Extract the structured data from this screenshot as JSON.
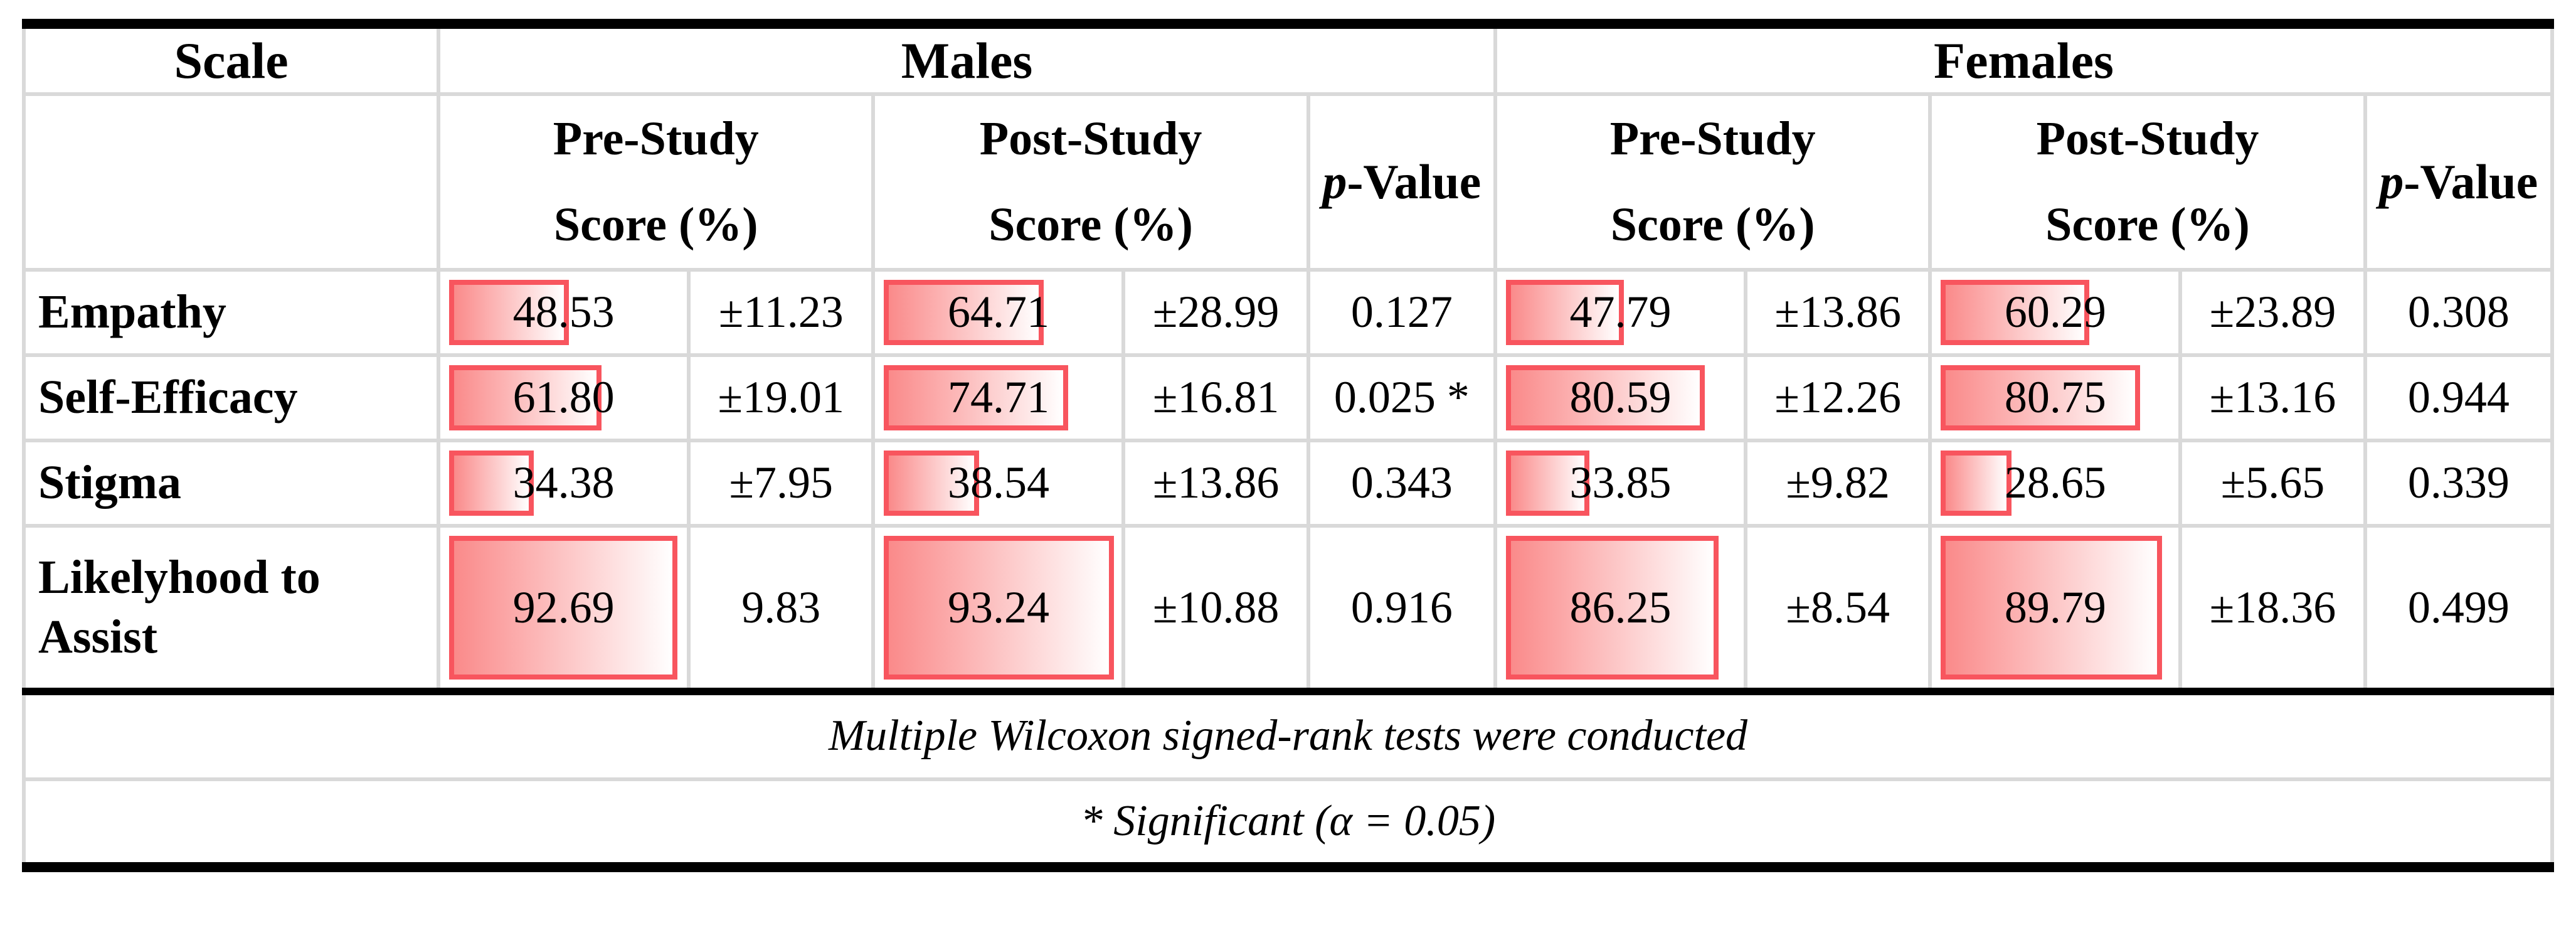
{
  "table": {
    "header": {
      "scale": "Scale",
      "males": "Males",
      "females": "Females",
      "pre_line1": "Pre-Study",
      "pre_line2": "Score (%)",
      "post_line1": "Post-Study",
      "post_line2": "Score (%)",
      "p_italic": "p",
      "p_rest": "-Value"
    },
    "rows": [
      {
        "label": "Empathy",
        "cells": [
          {
            "v": "48.53",
            "bar": 48.53
          },
          {
            "v": "±11.23"
          },
          {
            "v": "64.71",
            "bar": 64.71
          },
          {
            "v": "±28.99"
          },
          {
            "v": "0.127"
          },
          {
            "v": "47.79",
            "bar": 47.79
          },
          {
            "v": "±13.86"
          },
          {
            "v": "60.29",
            "bar": 60.29
          },
          {
            "v": "±23.89"
          },
          {
            "v": "0.308"
          }
        ]
      },
      {
        "label": "Self-Efficacy",
        "cells": [
          {
            "v": "61.80",
            "bar": 61.8
          },
          {
            "v": "±19.01"
          },
          {
            "v": "74.71",
            "bar": 74.71
          },
          {
            "v": "±16.81"
          },
          {
            "v": "0.025 *"
          },
          {
            "v": "80.59",
            "bar": 80.59
          },
          {
            "v": "±12.26"
          },
          {
            "v": "80.75",
            "bar": 80.75
          },
          {
            "v": "±13.16"
          },
          {
            "v": "0.944"
          }
        ]
      },
      {
        "label": "Stigma",
        "cells": [
          {
            "v": "34.38",
            "bar": 34.38
          },
          {
            "v": "±7.95"
          },
          {
            "v": "38.54",
            "bar": 38.54
          },
          {
            "v": "±13.86"
          },
          {
            "v": "0.343"
          },
          {
            "v": "33.85",
            "bar": 33.85
          },
          {
            "v": "±9.82"
          },
          {
            "v": "28.65",
            "bar": 28.65
          },
          {
            "v": "±5.65"
          },
          {
            "v": "0.339"
          }
        ]
      },
      {
        "label": "Likelyhood to Assist",
        "tall": true,
        "cells": [
          {
            "v": "92.69",
            "bar": 92.69
          },
          {
            "v": "9.83"
          },
          {
            "v": "93.24",
            "bar": 93.24
          },
          {
            "v": "±10.88"
          },
          {
            "v": "0.916"
          },
          {
            "v": "86.25",
            "bar": 86.25
          },
          {
            "v": "±8.54"
          },
          {
            "v": "89.79",
            "bar": 89.79
          },
          {
            "v": "±18.36"
          },
          {
            "v": "0.499"
          }
        ]
      }
    ],
    "footnotes": [
      "Multiple Wilcoxon signed-rank tests were conducted",
      "* Significant (α = 0.05)"
    ],
    "colors": {
      "bar_border": "#f8555e",
      "bar_fill_start": "#fa8a8a",
      "bar_fill_end": "#ffffff",
      "grid_line": "#d9d9d9",
      "frame": "#000000"
    }
  }
}
